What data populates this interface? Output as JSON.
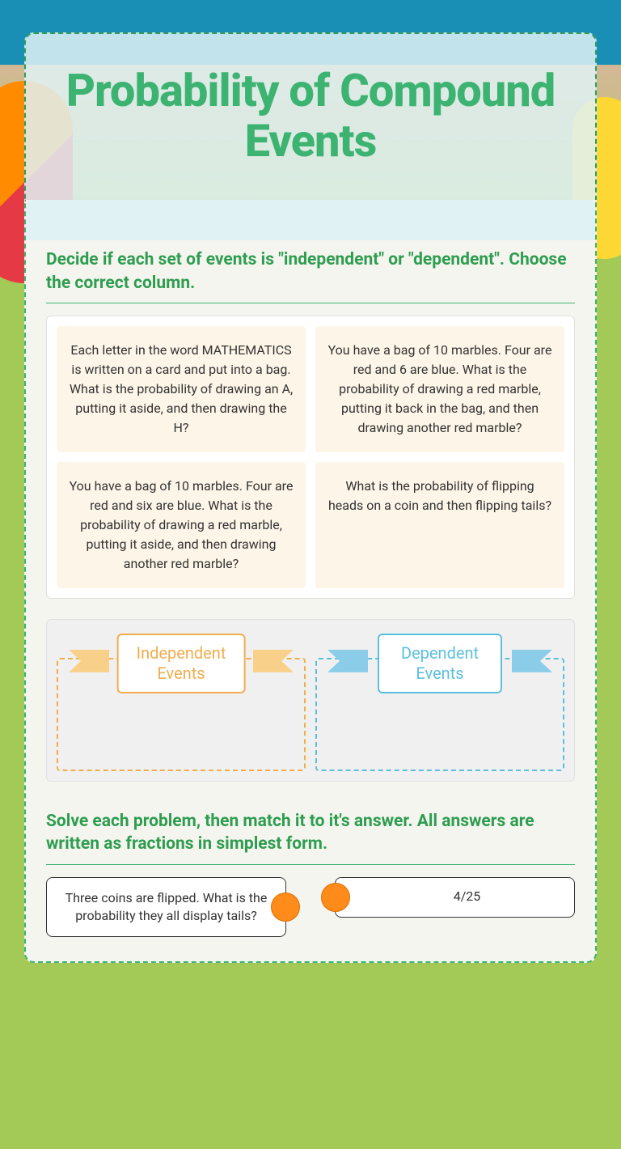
{
  "title": "Probability of Compound Events",
  "section1": {
    "heading": "Decide if each set of events is \"independent\" or \"dependent\".  Choose the correct column.",
    "cards": [
      "Each letter in the word MATHEMATICS is written on a card and put into a bag. What is the probability of drawing an A, putting it aside, and then drawing the H?",
      "You have a bag of 10 marbles. Four are red and 6 are blue. What is the probability of drawing a red marble, putting it back in the bag, and then drawing another red marble?",
      "You have a bag of 10 marbles. Four are red and six are blue. What is the probability of drawing a red marble, putting it aside, and then drawing another red marble?",
      "What is the probability of flipping heads on a coin and then flipping tails?"
    ],
    "zones": {
      "independent": "Independent Events",
      "dependent": "Dependent Events"
    }
  },
  "section2": {
    "heading": "Solve each problem, then match it to it's answer. All answers are written as fractions in simplest form.",
    "problem": "Three coins are flipped. What is the probability they all display tails?",
    "answer": "4/25"
  },
  "colors": {
    "primary_green": "#3cb371",
    "heading_green": "#2e9d4f",
    "card_bg": "#fdf6e8",
    "orange": "#f0ad4e",
    "blue": "#5bc0de",
    "connector": "#ff8c1a"
  }
}
